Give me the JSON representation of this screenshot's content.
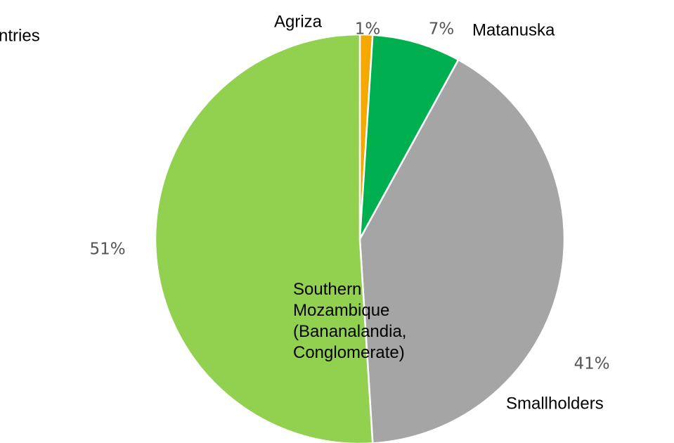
{
  "chart_data": {
    "type": "pie",
    "title": "ntries",
    "categories": [
      "Agriza",
      "Matanuska",
      "Smallholders",
      "Southern Mozambique (Bananalandia, Conglomerate)"
    ],
    "values": [
      1,
      7,
      41,
      51
    ],
    "value_labels": [
      "1%",
      "7%",
      "41%",
      "51%"
    ],
    "colors": [
      "#f5a800",
      "#00b050",
      "#a5a5a5",
      "#92d050"
    ]
  }
}
